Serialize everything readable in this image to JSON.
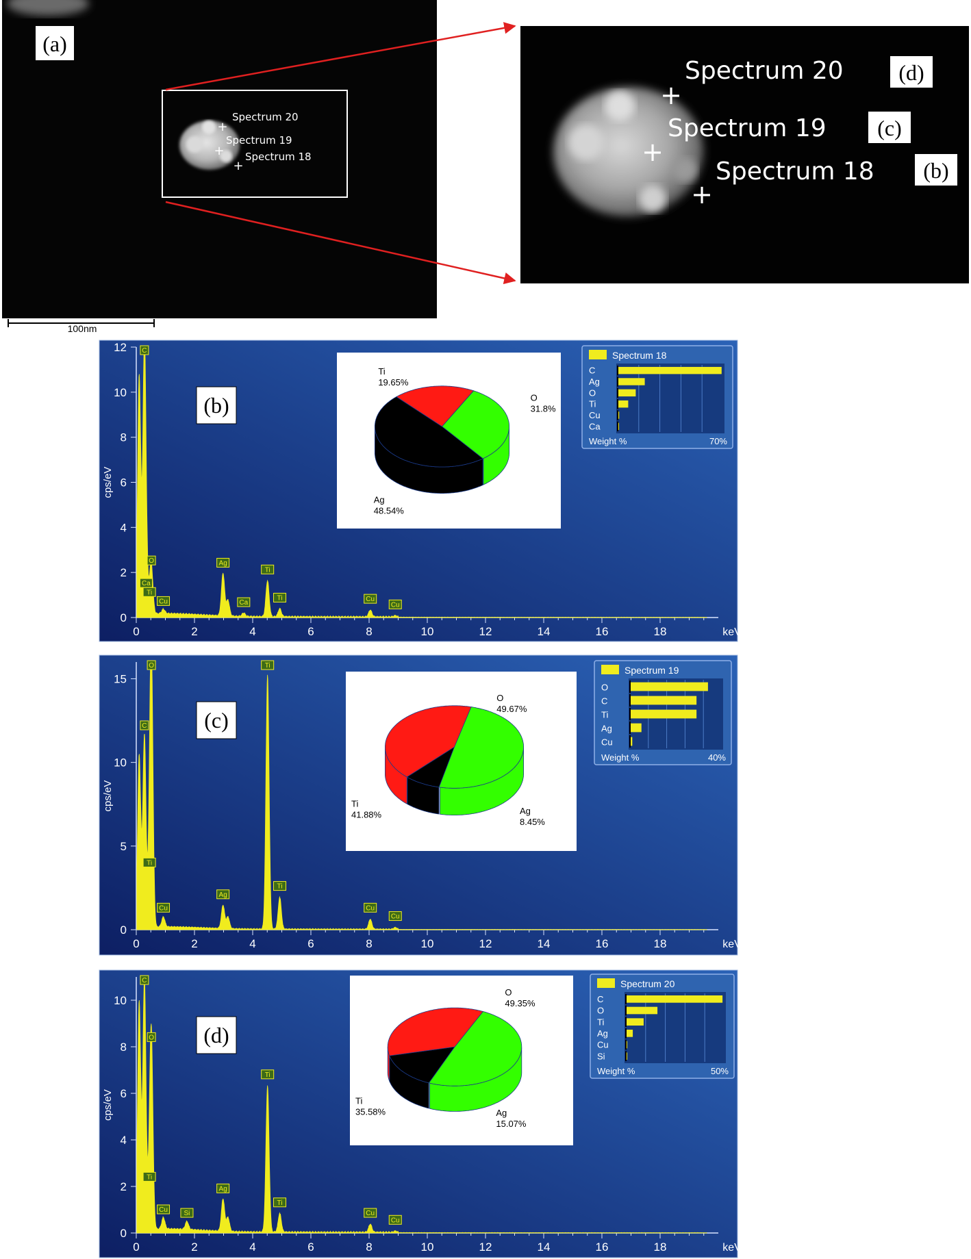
{
  "sem": {
    "panel_label": "(a)",
    "scale_bar_label": "100nm",
    "markers": [
      "Spectrum 20",
      "Spectrum 19",
      "Spectrum 18"
    ],
    "zoom_markers": [
      {
        "spectrum": "Spectrum 20",
        "panel": "(d)"
      },
      {
        "spectrum": "Spectrum 19",
        "panel": "(c)"
      },
      {
        "spectrum": "Spectrum 18",
        "panel": "(b)"
      }
    ],
    "arrow_color": "#e02020"
  },
  "colors": {
    "plot_bg_light": "#2b62b6",
    "plot_bg_dark": "#0d1f63",
    "spectrum": "#f0ec1e",
    "pie_o": "#33ff00",
    "pie_ti": "#ff1a14",
    "pie_ag": "#000000"
  },
  "chart_data": [
    {
      "type": "line",
      "panel_label": "(b)",
      "ylabel": "cps/eV",
      "xlabel": "keV",
      "xlim": [
        0,
        20
      ],
      "ylim": [
        0,
        12
      ],
      "x_ticks": [
        "0",
        "2",
        "4",
        "6",
        "8",
        "10",
        "12",
        "14",
        "16",
        "18"
      ],
      "y_ticks": [
        "0",
        "2",
        "4",
        "6",
        "8",
        "10",
        "12"
      ],
      "peaks": [
        {
          "element": "C",
          "x": 0.28,
          "y": 11.8,
          "labeled": true
        },
        {
          "element": "",
          "x": 0.1,
          "y": 10.6,
          "labeled": false
        },
        {
          "element": "O",
          "x": 0.52,
          "y": 2.0,
          "labeled": true
        },
        {
          "element": "Ca",
          "x": 0.34,
          "y": 1.0,
          "labeled": true
        },
        {
          "element": "Ti",
          "x": 0.45,
          "y": 0.6,
          "labeled": true
        },
        {
          "element": "Cu",
          "x": 0.93,
          "y": 0.2,
          "labeled": true
        },
        {
          "element": "Ag",
          "x": 2.98,
          "y": 1.9,
          "labeled": true
        },
        {
          "element": "",
          "x": 3.15,
          "y": 0.7,
          "labeled": false
        },
        {
          "element": "Ca",
          "x": 3.69,
          "y": 0.15,
          "labeled": true
        },
        {
          "element": "Ti",
          "x": 4.51,
          "y": 1.6,
          "labeled": true
        },
        {
          "element": "Ti",
          "x": 4.93,
          "y": 0.35,
          "labeled": true
        },
        {
          "element": "Cu",
          "x": 8.04,
          "y": 0.3,
          "labeled": true
        },
        {
          "element": "Cu",
          "x": 8.9,
          "y": 0.05,
          "labeled": true
        }
      ],
      "pie": {
        "slices": [
          {
            "label": "O",
            "value": 31.8,
            "display": "31.8%"
          },
          {
            "label": "Ti",
            "value": 19.65,
            "display": "19.65%"
          },
          {
            "label": "Ag",
            "value": 48.54,
            "display": "48.54%"
          }
        ]
      },
      "weight_table": {
        "title": "Spectrum 18",
        "footer_left": "Weight %",
        "footer_right": "70%",
        "max": 70,
        "rows": [
          {
            "element": "C",
            "value": 69
          },
          {
            "element": "Ag",
            "value": 18
          },
          {
            "element": "O",
            "value": 12
          },
          {
            "element": "Ti",
            "value": 7
          },
          {
            "element": "Cu",
            "value": 1
          },
          {
            "element": "Ca",
            "value": 0.5
          }
        ]
      }
    },
    {
      "type": "line",
      "panel_label": "(c)",
      "ylabel": "cps/eV",
      "xlabel": "keV",
      "xlim": [
        0,
        20
      ],
      "ylim": [
        0,
        16
      ],
      "x_ticks": [
        "0",
        "2",
        "4",
        "6",
        "8",
        "10",
        "12",
        "14",
        "16",
        "18"
      ],
      "y_ticks": [
        "0",
        "5",
        "10",
        "15"
      ],
      "peaks": [
        {
          "element": "O",
          "x": 0.52,
          "y": 16.0,
          "labeled": true
        },
        {
          "element": "C",
          "x": 0.28,
          "y": 11.5,
          "labeled": true
        },
        {
          "element": "",
          "x": 0.1,
          "y": 10.3,
          "labeled": false
        },
        {
          "element": "Ti",
          "x": 0.45,
          "y": 3.3,
          "labeled": true
        },
        {
          "element": "Cu",
          "x": 0.93,
          "y": 0.6,
          "labeled": true
        },
        {
          "element": "Ag",
          "x": 2.98,
          "y": 1.4,
          "labeled": true
        },
        {
          "element": "",
          "x": 3.15,
          "y": 0.7,
          "labeled": false
        },
        {
          "element": "Ti",
          "x": 4.51,
          "y": 15.2,
          "labeled": true
        },
        {
          "element": "Ti",
          "x": 4.93,
          "y": 1.9,
          "labeled": true
        },
        {
          "element": "Cu",
          "x": 8.04,
          "y": 0.6,
          "labeled": true
        },
        {
          "element": "Cu",
          "x": 8.9,
          "y": 0.1,
          "labeled": true
        }
      ],
      "pie": {
        "slices": [
          {
            "label": "O",
            "value": 49.67,
            "display": "49.67%"
          },
          {
            "label": "Ti",
            "value": 41.88,
            "display": "41.88%"
          },
          {
            "label": "Ag",
            "value": 8.45,
            "display": "8.45%"
          }
        ]
      },
      "weight_table": {
        "title": "Spectrum 19",
        "footer_left": "Weight %",
        "footer_right": "40%",
        "max": 40,
        "rows": [
          {
            "element": "O",
            "value": 34
          },
          {
            "element": "C",
            "value": 29
          },
          {
            "element": "Ti",
            "value": 29
          },
          {
            "element": "Ag",
            "value": 5
          },
          {
            "element": "Cu",
            "value": 1
          }
        ]
      }
    },
    {
      "type": "line",
      "panel_label": "(d)",
      "ylabel": "cps/eV",
      "xlabel": "keV",
      "xlim": [
        0,
        20
      ],
      "ylim": [
        0,
        11
      ],
      "x_ticks": [
        "0",
        "2",
        "4",
        "6",
        "8",
        "10",
        "12",
        "14",
        "16",
        "18"
      ],
      "y_ticks": [
        "0",
        "2",
        "4",
        "6",
        "8",
        "10"
      ],
      "peaks": [
        {
          "element": "C",
          "x": 0.28,
          "y": 10.8,
          "labeled": true
        },
        {
          "element": "",
          "x": 0.1,
          "y": 9.8,
          "labeled": false
        },
        {
          "element": "O",
          "x": 0.52,
          "y": 7.9,
          "labeled": true
        },
        {
          "element": "Ti",
          "x": 0.45,
          "y": 1.9,
          "labeled": true
        },
        {
          "element": "Cu",
          "x": 0.93,
          "y": 0.5,
          "labeled": true
        },
        {
          "element": "Si",
          "x": 1.74,
          "y": 0.35,
          "labeled": true
        },
        {
          "element": "Ag",
          "x": 2.98,
          "y": 1.4,
          "labeled": true
        },
        {
          "element": "",
          "x": 3.15,
          "y": 0.6,
          "labeled": false
        },
        {
          "element": "Ti",
          "x": 4.51,
          "y": 6.3,
          "labeled": true
        },
        {
          "element": "Ti",
          "x": 4.93,
          "y": 0.8,
          "labeled": true
        },
        {
          "element": "Cu",
          "x": 8.04,
          "y": 0.35,
          "labeled": true
        },
        {
          "element": "Cu",
          "x": 8.9,
          "y": 0.05,
          "labeled": true
        }
      ],
      "pie": {
        "slices": [
          {
            "label": "O",
            "value": 49.35,
            "display": "49.35%"
          },
          {
            "label": "Ti",
            "value": 35.58,
            "display": "35.58%"
          },
          {
            "label": "Ag",
            "value": 15.07,
            "display": "15.07%"
          }
        ]
      },
      "weight_table": {
        "title": "Spectrum 20",
        "footer_left": "Weight %",
        "footer_right": "50%",
        "max": 50,
        "rows": [
          {
            "element": "C",
            "value": 49
          },
          {
            "element": "O",
            "value": 16
          },
          {
            "element": "Ti",
            "value": 9
          },
          {
            "element": "Ag",
            "value": 3.5
          },
          {
            "element": "Cu",
            "value": 0.5
          },
          {
            "element": "Si",
            "value": 0.3
          }
        ]
      }
    }
  ]
}
